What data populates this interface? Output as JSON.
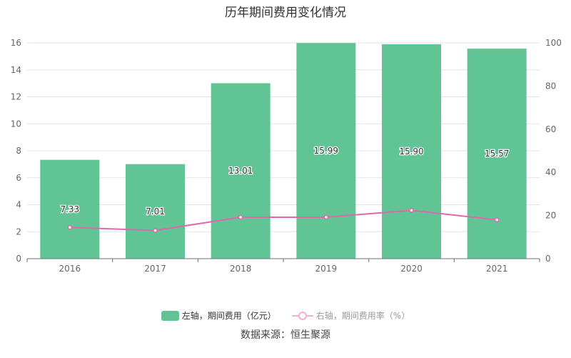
{
  "chart_data": {
    "type": "bar+line",
    "title": "历年期间费用变化情况",
    "categories": [
      "2016",
      "2017",
      "2018",
      "2019",
      "2020",
      "2021"
    ],
    "series": [
      {
        "name": "左轴，期间费用（亿元）",
        "type": "bar",
        "axis": "left",
        "color": "#61c494",
        "values": [
          7.33,
          7.01,
          13.01,
          15.99,
          15.9,
          15.57
        ],
        "labels": [
          "7.33",
          "7.01",
          "13.01",
          "15.99",
          "15.90",
          "15.57"
        ]
      },
      {
        "name": "右轴，期间费用率（%）",
        "type": "line",
        "axis": "right",
        "color": "#de6aab",
        "values": [
          14.5,
          13.1,
          19.2,
          19.2,
          22.4,
          18.0
        ]
      }
    ],
    "left_axis": {
      "ylim": [
        0,
        16
      ],
      "ticks": [
        "0",
        "2",
        "4",
        "6",
        "8",
        "10",
        "12",
        "14",
        "16"
      ]
    },
    "right_axis": {
      "ylim": [
        0,
        100
      ],
      "ticks": [
        "0",
        "20",
        "40",
        "60",
        "80",
        "100"
      ]
    },
    "grid": true,
    "legend_position": "bottom"
  },
  "source": "数据来源：恒生聚源"
}
